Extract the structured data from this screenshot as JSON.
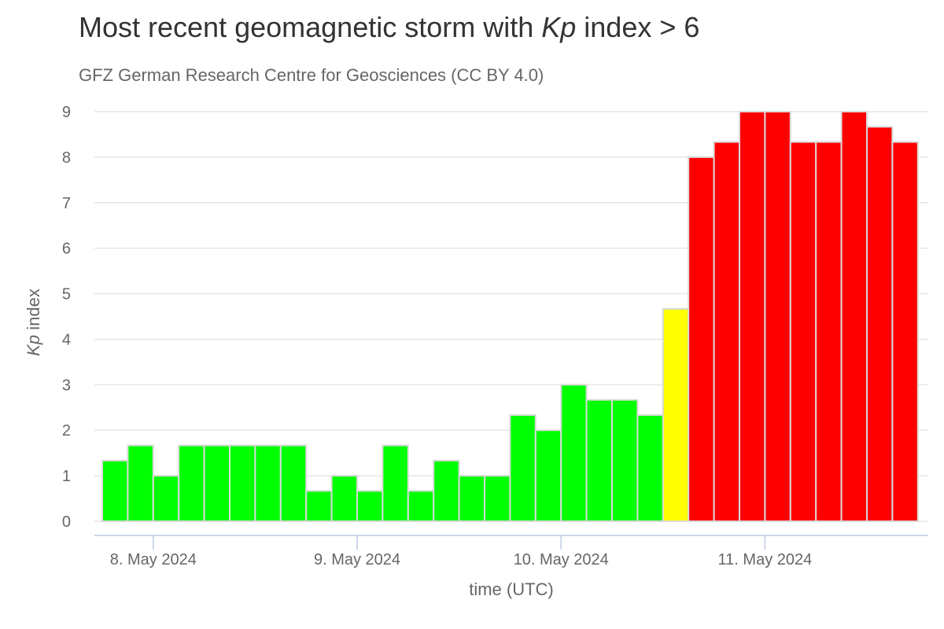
{
  "title": {
    "pre": "Most recent geomagnetic storm with ",
    "em": "Kp",
    "post": " index > 6"
  },
  "subtitle": "GFZ German Research Centre for Geosciences (CC BY 4.0)",
  "colors": {
    "quiet": "#00ff00",
    "active": "#ffff00",
    "storm": "#ff0000",
    "bar_stroke": "#d9d9d9",
    "grid": "#e6e6e6",
    "axis": "#ccd6eb"
  },
  "chart_data": {
    "type": "bar",
    "title": "Most recent geomagnetic storm with Kp index > 6",
    "subtitle": "GFZ German Research Centre for Geosciences (CC BY 4.0)",
    "xlabel": "time (UTC)",
    "ylabel": {
      "em": "Kp",
      "rest": " index"
    },
    "ylim": [
      0,
      9
    ],
    "yticks": [
      0,
      1,
      2,
      3,
      4,
      5,
      6,
      7,
      8,
      9
    ],
    "xticks": [
      {
        "label": "8. May 2024",
        "index": 2
      },
      {
        "label": "9. May 2024",
        "index": 10
      },
      {
        "label": "10. May 2024",
        "index": 18
      },
      {
        "label": "11. May 2024",
        "index": 26
      }
    ],
    "grid": true,
    "legend": "none",
    "values": [
      1.333,
      1.667,
      1.0,
      1.667,
      1.667,
      1.667,
      1.667,
      1.667,
      0.667,
      1.0,
      0.667,
      1.667,
      0.667,
      1.333,
      1.0,
      1.0,
      2.333,
      2.0,
      3.0,
      2.667,
      2.667,
      2.333,
      4.667,
      8.0,
      8.333,
      9.0,
      9.0,
      8.333,
      8.333,
      9.0,
      8.667,
      8.333
    ],
    "levels": [
      "quiet",
      "quiet",
      "quiet",
      "quiet",
      "quiet",
      "quiet",
      "quiet",
      "quiet",
      "quiet",
      "quiet",
      "quiet",
      "quiet",
      "quiet",
      "quiet",
      "quiet",
      "quiet",
      "quiet",
      "quiet",
      "quiet",
      "quiet",
      "quiet",
      "quiet",
      "active",
      "storm",
      "storm",
      "storm",
      "storm",
      "storm",
      "storm",
      "storm",
      "storm",
      "storm"
    ]
  }
}
